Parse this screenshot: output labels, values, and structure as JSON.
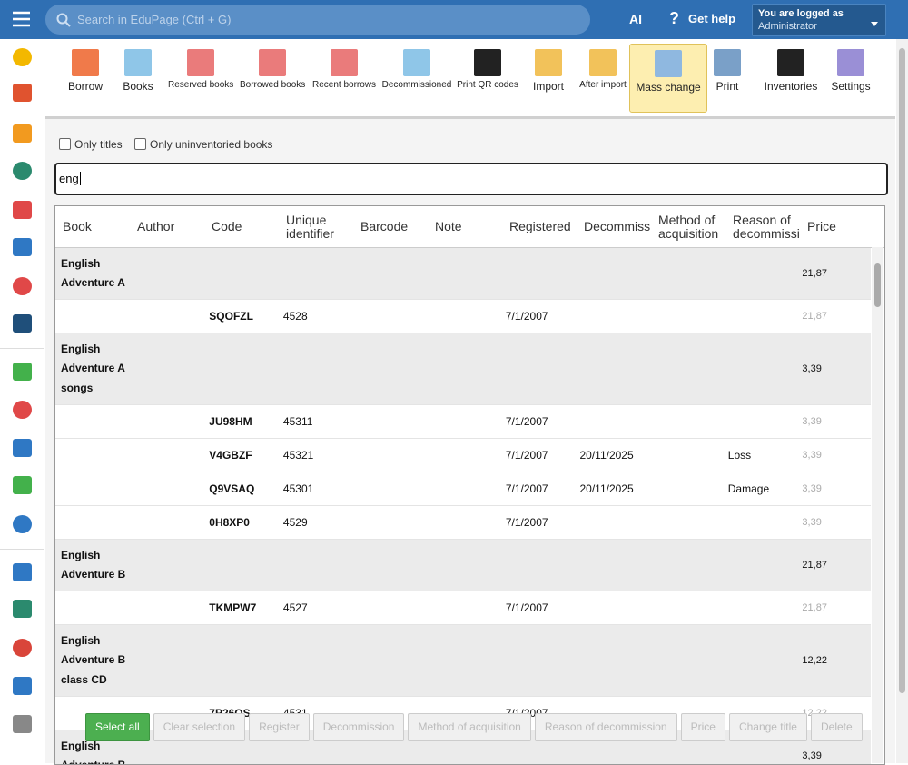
{
  "topbar": {
    "search_placeholder": "Search in EduPage (Ctrl + G)",
    "ai": "AI",
    "help": "Get help",
    "logged_as": "You are logged as",
    "role": "Administrator"
  },
  "toolbar": [
    "Borrow",
    "Books",
    "Reserved books",
    "Borrowed books",
    "Recent borrows",
    "Decommissioned",
    "Print QR codes",
    "Import",
    "After import",
    "Mass change",
    "Print",
    "Inventories",
    "Settings"
  ],
  "filters": {
    "only_titles": "Only titles",
    "only_uninventoried": "Only uninventoried books"
  },
  "search_value": "eng",
  "table": {
    "headers": [
      "Book",
      "Author",
      "Code",
      "Unique identifier",
      "Barcode",
      "Note",
      "Registered",
      "Decommission",
      "Method of acquisition",
      "Reason of decommission",
      "Price"
    ],
    "rows": [
      {
        "book": "English Adventure A",
        "price": "21,87"
      },
      {
        "code": "SQOFZL",
        "unique_identifier": "4528",
        "registered": "7/1/2007",
        "price": "21,87"
      },
      {
        "book": "English Adventure A songs",
        "price": "3,39"
      },
      {
        "code": "JU98HM",
        "unique_identifier": "45311",
        "registered": "7/1/2007",
        "price": "3,39"
      },
      {
        "code": "V4GBZF",
        "unique_identifier": "45321",
        "registered": "7/1/2007",
        "decommission": "20/11/2025",
        "reason": "Loss",
        "price": "3,39"
      },
      {
        "code": "Q9VSAQ",
        "unique_identifier": "45301",
        "registered": "7/1/2007",
        "decommission": "20/11/2025",
        "reason": "Damage",
        "price": "3,39"
      },
      {
        "code": "0H8XP0",
        "unique_identifier": "4529",
        "registered": "7/1/2007",
        "price": "3,39"
      },
      {
        "book": "English Adventure B",
        "price": "21,87"
      },
      {
        "code": "TKMPW7",
        "unique_identifier": "4527",
        "registered": "7/1/2007",
        "price": "21,87"
      },
      {
        "book": "English Adventure B class CD",
        "price": "12,22"
      },
      {
        "code": "7P26QS",
        "unique_identifier": "4531",
        "registered": "7/1/2007",
        "price": "12,22"
      },
      {
        "book": "English Adventure B",
        "price": "3,39"
      }
    ]
  },
  "buttons": [
    "Select all",
    "Clear selection",
    "Register",
    "Decommission",
    "Method of acquisition",
    "Reason of decommission",
    "Price",
    "Change title",
    "Delete"
  ]
}
